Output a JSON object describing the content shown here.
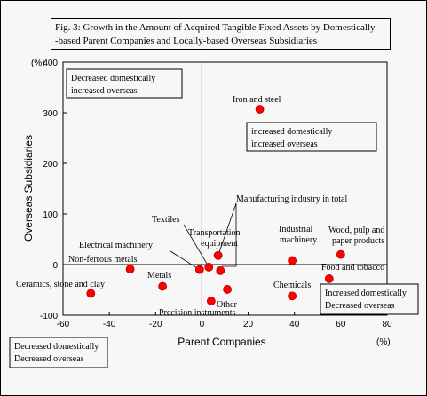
{
  "chart_data": {
    "type": "scatter",
    "title_lines": [
      "Fig. 3: Growth in the Amount of Acquired Tangible Fixed Assets by Domestically",
      "-based Parent Companies and Locally-based Overseas Subsidiaries"
    ],
    "xlabel": "Parent Companies",
    "ylabel": "Overseas Subsidiaries",
    "x_unit": "(%)",
    "y_unit": "(%)",
    "xlim": [
      -60,
      80
    ],
    "ylim": [
      -100,
      400
    ],
    "xticks": [
      -60,
      -40,
      -20,
      0,
      20,
      40,
      60,
      80
    ],
    "yticks": [
      -100,
      0,
      100,
      200,
      300,
      400
    ],
    "point_color": "#ff0000",
    "points": [
      {
        "label": "Iron and steel",
        "x": 25,
        "y": 307
      },
      {
        "label": "Manufacturing industry in total",
        "x": 7,
        "y": 18
      },
      {
        "label": "Transportation equipment",
        "x": 8,
        "y": -12
      },
      {
        "label": "Textiles",
        "x": 3,
        "y": -5
      },
      {
        "label": "Electrical machinery",
        "x": -1,
        "y": -10
      },
      {
        "label": "Non-ferrous metals",
        "x": -31,
        "y": -9
      },
      {
        "label": "Metals",
        "x": -17,
        "y": -43
      },
      {
        "label": "Ceramics, stone and clay",
        "x": -48,
        "y": -57
      },
      {
        "label": "Precision instruments",
        "x": 4,
        "y": -72
      },
      {
        "label": "Other",
        "x": 11,
        "y": -49
      },
      {
        "label": "Industrial machinery",
        "x": 39,
        "y": 8
      },
      {
        "label": "Wood, pulp and paper products",
        "x": 60,
        "y": 20
      },
      {
        "label": "Food and tobacco",
        "x": 55,
        "y": -28
      },
      {
        "label": "Chemicals",
        "x": 39,
        "y": -62
      }
    ],
    "quadrant_notes": {
      "top_left": [
        "Decreased domestically",
        "increased overseas"
      ],
      "top_right": [
        "increased domestically",
        "increased overseas"
      ],
      "bottom_right": [
        "Increased domestically",
        "Decreased overseas"
      ],
      "bottom_left": [
        "Decreased domestically",
        "Decreased overseas"
      ]
    },
    "grid": false
  }
}
